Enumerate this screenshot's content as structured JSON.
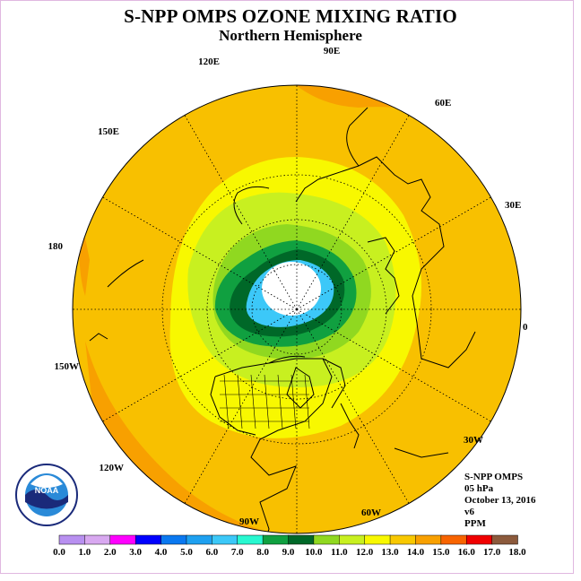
{
  "title": "S-NPP OMPS OZONE MIXING RATIO",
  "subtitle": "Northern Hemisphere",
  "longitude_labels": [
    "90E",
    "60E",
    "30E",
    "0",
    "30W",
    "60W",
    "90W",
    "120W",
    "150W",
    "180",
    "150E",
    "120E"
  ],
  "info": {
    "instrument": "S-NPP OMPS",
    "pressure": "05 hPa",
    "date": "October 13, 2016",
    "version": "v6",
    "units": "PPM"
  },
  "logo": {
    "text": "NOAA",
    "ring_text": "NATIONAL OCEANIC AND ATMOSPHERIC ADMINISTRATION U.S. DEPARTMENT OF COMMERCE"
  },
  "colorbar": {
    "tick_labels": [
      "0.0",
      "1.0",
      "2.0",
      "3.0",
      "4.0",
      "5.0",
      "6.0",
      "7.0",
      "8.0",
      "9.0",
      "10.0",
      "11.0",
      "12.0",
      "13.0",
      "14.0",
      "15.0",
      "16.0",
      "17.0",
      "18.0"
    ],
    "colors": [
      "#b890f0",
      "#d8a8f0",
      "#ff00ff",
      "#0000ff",
      "#0a78f0",
      "#1ea0f0",
      "#3cc8f8",
      "#28f8d0",
      "#10a040",
      "#006828",
      "#90d820",
      "#c8f020",
      "#f8f800",
      "#f8c800",
      "#f8a000",
      "#f86400",
      "#f00000",
      "#8c5a3c"
    ]
  },
  "map_colors": {
    "ocean_fill": "#f8c000",
    "band_orange": "#f8a000",
    "band_yellow": "#f8f800",
    "band_lightgreen": "#c8f020",
    "band_green": "#90d820",
    "band_darkgreen": "#10a040",
    "band_vdarkgreen": "#006828",
    "band_cyan": "#3cc8f8",
    "pole_white": "#ffffff"
  }
}
